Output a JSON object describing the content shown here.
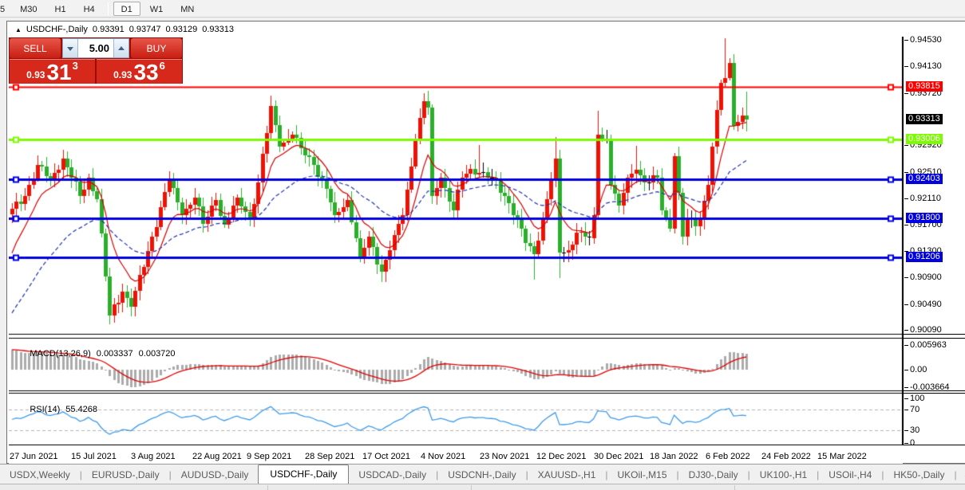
{
  "toolbar": {
    "timeframes": [
      {
        "label": "5",
        "active": false,
        "cut": true
      },
      {
        "label": "M30",
        "active": false
      },
      {
        "label": "H1",
        "active": false
      },
      {
        "label": "H4",
        "active": false
      },
      {
        "label": "D1",
        "active": true,
        "separator_before": true
      },
      {
        "label": "W1",
        "active": false
      },
      {
        "label": "MN",
        "active": false
      }
    ]
  },
  "window": {
    "title": {
      "collapse_icon": "triangle-up",
      "symbol": "USDCHF-,Daily",
      "open": "0.93391",
      "high": "0.93747",
      "low": "0.93129",
      "close": "0.93313"
    }
  },
  "trade_panel": {
    "sell_label": "SELL",
    "buy_label": "BUY",
    "volume": "5.00",
    "sell_price": {
      "prefix": "0.93",
      "big": "31",
      "sup": "3"
    },
    "buy_price": {
      "prefix": "0.93",
      "big": "33",
      "sup": "6"
    }
  },
  "macd": {
    "label": "MACD(13,26,9)",
    "main_value": "0.003337",
    "signal_value": "0.003720",
    "scale_top": "0.005963",
    "scale_zero": "0.00",
    "scale_bottom": "-0.003664"
  },
  "rsi": {
    "label": "RSI(14)",
    "value": "55.4268",
    "scale": [
      100,
      70,
      30,
      0
    ],
    "levels": [
      70,
      30
    ]
  },
  "tabs": {
    "items": [
      {
        "label": "USDX,Weekly",
        "active": false
      },
      {
        "label": "EURUSD-,Daily",
        "active": false
      },
      {
        "label": "AUDUSD-,Daily",
        "active": false
      },
      {
        "label": "USDCHF-,Daily",
        "active": true
      },
      {
        "label": "USDCAD-,Daily",
        "active": false
      },
      {
        "label": "USDCNH-,Daily",
        "active": false
      },
      {
        "label": "XAUUSD-,H1",
        "active": false
      },
      {
        "label": "UKOil-,M15",
        "active": false
      },
      {
        "label": "DJ30-,Daily",
        "active": false
      },
      {
        "label": "UK100-,H1",
        "active": false
      },
      {
        "label": "USOil-,H4",
        "active": false
      },
      {
        "label": "HK50-,Daily",
        "active": false
      }
    ],
    "scroll_arrows": "◂ ▸"
  },
  "chart_data": {
    "type": "candlestick",
    "symbol": "USDCHF",
    "period": "Daily",
    "color_convention": "red = bullish, green = bearish, black = doji",
    "bull_color": "#EE1205",
    "bear_color": "#2BAE2B",
    "doji_color": "#000000",
    "ylim": [
      0.90035,
      0.94583
    ],
    "main_ticks": [
      0.9453,
      0.9413,
      0.9372,
      0.9292,
      0.9251,
      0.9211,
      0.917,
      0.913,
      0.909,
      0.9049,
      0.9009
    ],
    "last_price": 0.93313,
    "last_price_badge_bg": "#000000",
    "levels": [
      {
        "value": 0.93815,
        "color": "#FF0000",
        "width": 2
      },
      {
        "value": 0.93006,
        "color": "#7CFC00",
        "width": 3
      },
      {
        "value": 0.92403,
        "color": "#0000E0",
        "width": 3
      },
      {
        "value": 0.918,
        "color": "#0000E0",
        "width": 3
      },
      {
        "value": 0.91206,
        "color": "#0000E0",
        "width": 3
      }
    ],
    "moving_averages": [
      {
        "name": "fast-ma",
        "color": "#D40000",
        "period": 9,
        "seed": 0.911,
        "dash": []
      },
      {
        "name": "slow-ma",
        "color": "#2233AA",
        "period": 32,
        "seed": 0.9025,
        "dash": [
          5,
          3
        ]
      }
    ],
    "dates": [
      "27 Jun 2021",
      "15 Jul 2021",
      "3 Aug 2021",
      "22 Aug 2021",
      "9 Sep 2021",
      "28 Sep 2021",
      "17 Oct 2021",
      "4 Nov 2021",
      "23 Nov 2021",
      "12 Dec 2021",
      "30 Dec 2021",
      "18 Jan 2022",
      "6 Feb 2022",
      "24 Feb 2022",
      "15 Mar 2022"
    ],
    "dates_x": [
      8,
      85,
      160,
      237,
      305,
      378,
      450,
      523,
      597,
      668,
      740,
      810,
      880,
      950,
      1020
    ],
    "bar_count": 174,
    "noise_amp": 0.00045,
    "close_anchors": [
      [
        0,
        0.9195
      ],
      [
        3,
        0.9215
      ],
      [
        6,
        0.9262
      ],
      [
        9,
        0.924
      ],
      [
        12,
        0.9272
      ],
      [
        16,
        0.9215
      ],
      [
        18,
        0.9242
      ],
      [
        20,
        0.921
      ],
      [
        23,
        0.9032
      ],
      [
        26,
        0.9068
      ],
      [
        28,
        0.9045
      ],
      [
        32,
        0.913
      ],
      [
        37,
        0.924
      ],
      [
        40,
        0.9185
      ],
      [
        43,
        0.9212
      ],
      [
        45,
        0.9172
      ],
      [
        48,
        0.9208
      ],
      [
        50,
        0.917
      ],
      [
        53,
        0.9212
      ],
      [
        56,
        0.9182
      ],
      [
        58,
        0.9235
      ],
      [
        61,
        0.9352
      ],
      [
        63,
        0.929
      ],
      [
        66,
        0.9308
      ],
      [
        68,
        0.9288
      ],
      [
        71,
        0.9262
      ],
      [
        74,
        0.9225
      ],
      [
        76,
        0.9185
      ],
      [
        79,
        0.9208
      ],
      [
        82,
        0.9122
      ],
      [
        84,
        0.9152
      ],
      [
        87,
        0.9098
      ],
      [
        89,
        0.9132
      ],
      [
        92,
        0.9185
      ],
      [
        95,
        0.93
      ],
      [
        97,
        0.936
      ],
      [
        98,
        0.935
      ],
      [
        99,
        0.9215
      ],
      [
        101,
        0.9242
      ],
      [
        104,
        0.9192
      ],
      [
        106,
        0.9242
      ],
      [
        108,
        0.9256
      ],
      [
        110,
        0.925
      ],
      [
        113,
        0.9242
      ],
      [
        116,
        0.9215
      ],
      [
        119,
        0.918
      ],
      [
        121,
        0.9142
      ],
      [
        123,
        0.9125
      ],
      [
        125,
        0.918
      ],
      [
        128,
        0.9272
      ],
      [
        129,
        0.9128
      ],
      [
        131,
        0.9132
      ],
      [
        133,
        0.9158
      ],
      [
        136,
        0.915
      ],
      [
        137,
        0.9185
      ],
      [
        138,
        0.9308
      ],
      [
        140,
        0.93
      ],
      [
        141,
        0.9232
      ],
      [
        143,
        0.92
      ],
      [
        145,
        0.9242
      ],
      [
        147,
        0.9255
      ],
      [
        149,
        0.9235
      ],
      [
        152,
        0.9242
      ],
      [
        153,
        0.9192
      ],
      [
        155,
        0.9165
      ],
      [
        156,
        0.9275
      ],
      [
        158,
        0.9152
      ],
      [
        159,
        0.9182
      ],
      [
        161,
        0.9168
      ],
      [
        162,
        0.9178
      ],
      [
        164,
        0.9232
      ],
      [
        165,
        0.929
      ],
      [
        167,
        0.9388
      ],
      [
        168,
        0.9395
      ],
      [
        169,
        0.9418
      ],
      [
        170,
        0.9322
      ],
      [
        171,
        0.9328
      ],
      [
        172,
        0.9338
      ],
      [
        173,
        0.9331
      ]
    ],
    "wick_high": {
      "61": 0.9368,
      "97": 0.9372,
      "110": 0.9292,
      "128": 0.9305,
      "138": 0.9345,
      "147": 0.9291,
      "168": 0.9456,
      "173": 0.93747
    },
    "wick_low": {
      "23": 0.9018,
      "87": 0.9085,
      "99": 0.9208,
      "123": 0.9087,
      "129": 0.9089,
      "158": 0.914,
      "173": 0.93129
    },
    "macd_params": {
      "fast": 13,
      "slow": 26,
      "signal": 9,
      "hist_color": "#ABABAB",
      "signal_color": "#E00000",
      "scale_top": 0.005963,
      "scale_bottom": -0.003664
    },
    "rsi_params": {
      "period": 14,
      "color": "#3E9BE9",
      "level_color": "#B3B3B3"
    }
  }
}
